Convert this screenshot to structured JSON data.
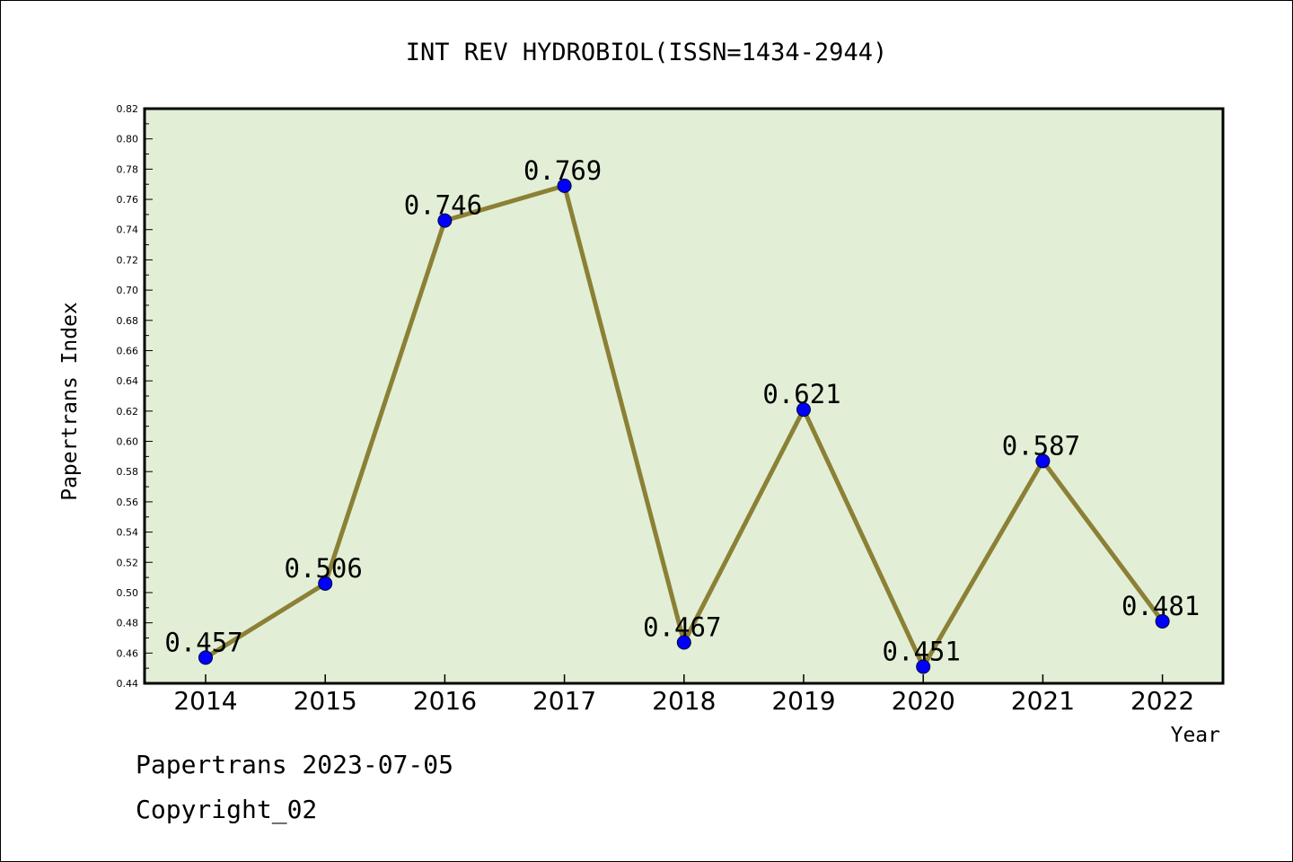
{
  "chart_data": {
    "type": "line",
    "title": "INT REV HYDROBIOL(ISSN=1434-2944)",
    "xlabel": "Year",
    "ylabel": "Papertrans Index",
    "categories": [
      "2014",
      "2015",
      "2016",
      "2017",
      "2018",
      "2019",
      "2020",
      "2021",
      "2022"
    ],
    "series": [
      {
        "values": [
          0.457,
          0.506,
          0.746,
          0.769,
          0.467,
          0.621,
          0.451,
          0.587,
          0.481
        ]
      }
    ],
    "data_labels": [
      "0.457",
      "0.506",
      "0.746",
      "0.769",
      "0.467",
      "0.621",
      "0.451",
      "0.587",
      "0.481"
    ],
    "ylim": [
      0.44,
      0.82
    ],
    "yticks": [
      "0.44",
      "0.46",
      "0.48",
      "0.50",
      "0.52",
      "0.54",
      "0.56",
      "0.58",
      "0.60",
      "0.62",
      "0.64",
      "0.66",
      "0.68",
      "0.70",
      "0.72",
      "0.74",
      "0.76",
      "0.78",
      "0.80",
      "0.82"
    ],
    "grid": false,
    "legend": "none",
    "colors": {
      "plot_bg": "#e2efd6",
      "line": "#8b8035",
      "marker": "#0000ff"
    }
  },
  "footer": {
    "line1": "Papertrans 2023-07-05",
    "line2": "Copyright_02"
  }
}
